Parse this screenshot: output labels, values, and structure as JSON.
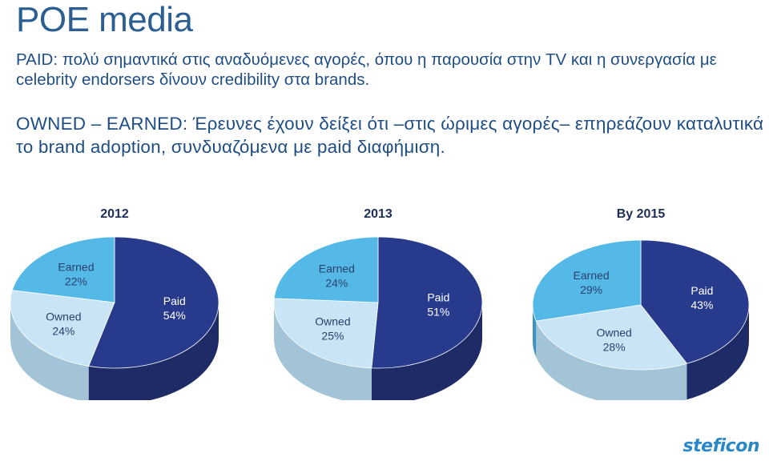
{
  "page": {
    "title": "POE media",
    "paragraph_paid": "PAID: πολύ σημαντικά στις αναδυόμενες αγορές, όπου η παρουσία στην TV και η συνεργασία με celebrity endorsers δίνουν credibility στα brands.",
    "paragraph_owned": "OWNED – EARNED: Έρευνες έχουν δείξει ότι –στις ώριμες αγορές– επηρεάζουν καταλυτικά το brand adoption, συνδυαζόμενα με paid διαφήμιση.",
    "logo_text": "steficon"
  },
  "colors": {
    "text": "#1f4e85",
    "paid": "#283a8c",
    "paid_side": "#1e2b66",
    "owned": "#c9e4f5",
    "owned_side": "#a2c4d6",
    "earned": "#55b9e8",
    "earned_side": "#3d93c0"
  },
  "chart_data": [
    {
      "type": "pie",
      "title": "2012",
      "slices": [
        {
          "label": "Paid",
          "value": 54,
          "value_label": "54%"
        },
        {
          "label": "Owned",
          "value": 24,
          "value_label": "24%"
        },
        {
          "label": "Earned",
          "value": 22,
          "value_label": "22%"
        }
      ]
    },
    {
      "type": "pie",
      "title": "2013",
      "slices": [
        {
          "label": "Paid",
          "value": 51,
          "value_label": "51%"
        },
        {
          "label": "Owned",
          "value": 25,
          "value_label": "25%"
        },
        {
          "label": "Earned",
          "value": 24,
          "value_label": "24%"
        }
      ]
    },
    {
      "type": "pie",
      "title": "By 2015",
      "slices": [
        {
          "label": "Paid",
          "value": 43,
          "value_label": "43%"
        },
        {
          "label": "Owned",
          "value": 28,
          "value_label": "28%"
        },
        {
          "label": "Earned",
          "value": 29,
          "value_label": "29%"
        }
      ]
    }
  ]
}
